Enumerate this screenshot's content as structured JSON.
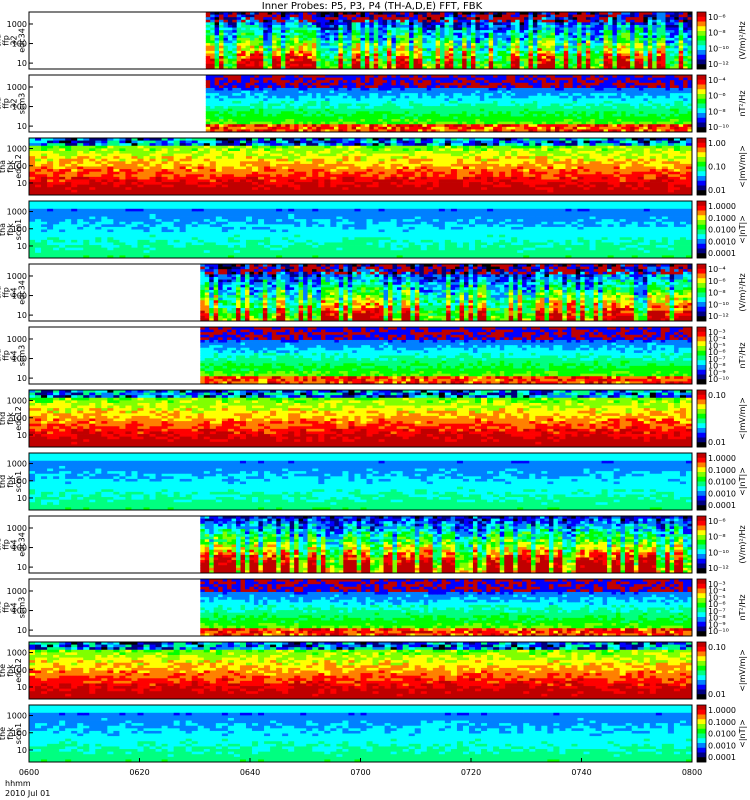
{
  "title": "Inner Probes: P5, P3, P4 (TH-A,D,E) FFT, FBK",
  "x_axis": {
    "tick_labels": [
      "0600",
      "0620",
      "0640",
      "0700",
      "0720",
      "0740",
      "0800"
    ],
    "footer_label_1": "hhmm",
    "footer_label_2": "2010 Jul 01"
  },
  "colors": {
    "colormap": [
      "#000000",
      "#000080",
      "#0000ff",
      "#0080ff",
      "#00ffff",
      "#00ff80",
      "#00ff00",
      "#80ff00",
      "#ffff00",
      "#ff8000",
      "#ff0000",
      "#c00000"
    ]
  },
  "chart_data": {
    "type": "heatmap",
    "x_range_hhmm": [
      "0600",
      "0800"
    ],
    "panels": [
      {
        "label": [
          "tha",
          "ffp",
          "32",
          "edc34"
        ],
        "y_ticks": [
          "1000",
          "100",
          "10"
        ],
        "y_range": [
          5,
          4096
        ],
        "y_scale": "log",
        "cbar_label": "(V/m)²/Hz",
        "cbar_ticks": [
          "10⁻⁶",
          "10⁻⁸",
          "10⁻¹⁰",
          "10⁻¹²"
        ],
        "data_start_hhmm": "0632",
        "data_end_hhmm": "0800",
        "profile": "spiky_e"
      },
      {
        "label": [
          "tha",
          "ffp",
          "32",
          "scm3"
        ],
        "y_ticks": [
          "1000",
          "100",
          "10"
        ],
        "y_range": [
          5,
          4096
        ],
        "y_scale": "log",
        "cbar_label": "nT²/Hz",
        "cbar_ticks": [
          "10⁻⁴",
          "10⁻⁶",
          "10⁻⁸",
          "10⁻¹⁰"
        ],
        "data_start_hhmm": "0632",
        "data_end_hhmm": "0800",
        "profile": "scm_ffp"
      },
      {
        "label": [
          "tha",
          "fbk",
          "edc12"
        ],
        "y_ticks": [
          "1000",
          "100",
          "10"
        ],
        "y_range": [
          2,
          4096
        ],
        "y_scale": "log",
        "cbar_label": "<|mV/m|>",
        "cbar_ticks": [
          "1.00",
          "0.10",
          "0.01"
        ],
        "data_start_hhmm": "0600",
        "data_end_hhmm": "0800",
        "profile": "fbk_e"
      },
      {
        "label": [
          "tha",
          "fbk",
          "scm1"
        ],
        "y_ticks": [
          "1000",
          "100",
          "10"
        ],
        "y_range": [
          2,
          4096
        ],
        "y_scale": "log",
        "cbar_label": "<|nT|>",
        "cbar_ticks": [
          "1.0000",
          "0.1000",
          "0.0100",
          "0.0010",
          "0.0001"
        ],
        "data_start_hhmm": "0600",
        "data_end_hhmm": "0800",
        "profile": "fbk_b"
      },
      {
        "label": [
          "thd",
          "ffp",
          "64",
          "edc34"
        ],
        "y_ticks": [
          "1000",
          "100",
          "10"
        ],
        "y_range": [
          5,
          4096
        ],
        "y_scale": "log",
        "cbar_label": "(V/m)²/Hz",
        "cbar_ticks": [
          "10⁻⁴",
          "10⁻⁶",
          "10⁻⁸",
          "10⁻¹⁰",
          "10⁻¹²"
        ],
        "data_start_hhmm": "0631",
        "data_end_hhmm": "0800",
        "profile": "spiky_e"
      },
      {
        "label": [
          "thd",
          "ffp",
          "64",
          "scm3"
        ],
        "y_ticks": [
          "1000",
          "100",
          "10"
        ],
        "y_range": [
          5,
          4096
        ],
        "y_scale": "log",
        "cbar_label": "nT²/Hz",
        "cbar_ticks": [
          "10⁻³",
          "10⁻⁴",
          "10⁻⁵",
          "10⁻⁶",
          "10⁻⁷",
          "10⁻⁸",
          "10⁻⁹",
          "10⁻¹⁰"
        ],
        "data_start_hhmm": "0631",
        "data_end_hhmm": "0800",
        "profile": "scm_ffp"
      },
      {
        "label": [
          "thd",
          "fbk",
          "edc12"
        ],
        "y_ticks": [
          "1000",
          "100",
          "10"
        ],
        "y_range": [
          2,
          4096
        ],
        "y_scale": "log",
        "cbar_label": "<|mV/m|>",
        "cbar_ticks": [
          "0.10",
          "0.01"
        ],
        "data_start_hhmm": "0600",
        "data_end_hhmm": "0800",
        "profile": "fbk_e"
      },
      {
        "label": [
          "thd",
          "fbk",
          "scm1"
        ],
        "y_ticks": [
          "1000",
          "100",
          "10"
        ],
        "y_range": [
          2,
          4096
        ],
        "y_scale": "log",
        "cbar_label": "<|nT|>",
        "cbar_ticks": [
          "1.0000",
          "0.1000",
          "0.0100",
          "0.0010",
          "0.0001"
        ],
        "data_start_hhmm": "0600",
        "data_end_hhmm": "0800",
        "profile": "fbk_b"
      },
      {
        "label": [
          "the",
          "ffp",
          "64",
          "edc34"
        ],
        "y_ticks": [
          "1000",
          "100",
          "10"
        ],
        "y_range": [
          5,
          4096
        ],
        "y_scale": "log",
        "cbar_label": "(V/m)²/Hz",
        "cbar_ticks": [
          "10⁻⁶",
          "10⁻⁸",
          "10⁻¹⁰",
          "10⁻¹²"
        ],
        "data_start_hhmm": "0631",
        "data_end_hhmm": "0800",
        "profile": "spiky_e2"
      },
      {
        "label": [
          "the",
          "ffp",
          "64",
          "scm3"
        ],
        "y_ticks": [
          "1000",
          "100",
          "10"
        ],
        "y_range": [
          5,
          4096
        ],
        "y_scale": "log",
        "cbar_label": "nT²/Hz",
        "cbar_ticks": [
          "10⁻³",
          "10⁻⁴",
          "10⁻⁵",
          "10⁻⁶",
          "10⁻⁷",
          "10⁻⁸",
          "10⁻⁹",
          "10⁻¹⁰"
        ],
        "data_start_hhmm": "0631",
        "data_end_hhmm": "0800",
        "profile": "scm_ffp"
      },
      {
        "label": [
          "the",
          "fbk",
          "edc12"
        ],
        "y_ticks": [
          "1000",
          "100",
          "10"
        ],
        "y_range": [
          2,
          4096
        ],
        "y_scale": "log",
        "cbar_label": "<|mV/m|>",
        "cbar_ticks": [
          "0.10",
          "0.01"
        ],
        "data_start_hhmm": "0600",
        "data_end_hhmm": "0800",
        "profile": "fbk_e"
      },
      {
        "label": [
          "the",
          "fbk",
          "scm1"
        ],
        "y_ticks": [
          "1000",
          "100",
          "10"
        ],
        "y_range": [
          2,
          4096
        ],
        "y_scale": "log",
        "cbar_label": "<|nT|>",
        "cbar_ticks": [
          "1.0000",
          "0.1000",
          "0.0100",
          "0.0010",
          "0.0001"
        ],
        "data_start_hhmm": "0600",
        "data_end_hhmm": "0800",
        "profile": "fbk_b"
      }
    ]
  }
}
